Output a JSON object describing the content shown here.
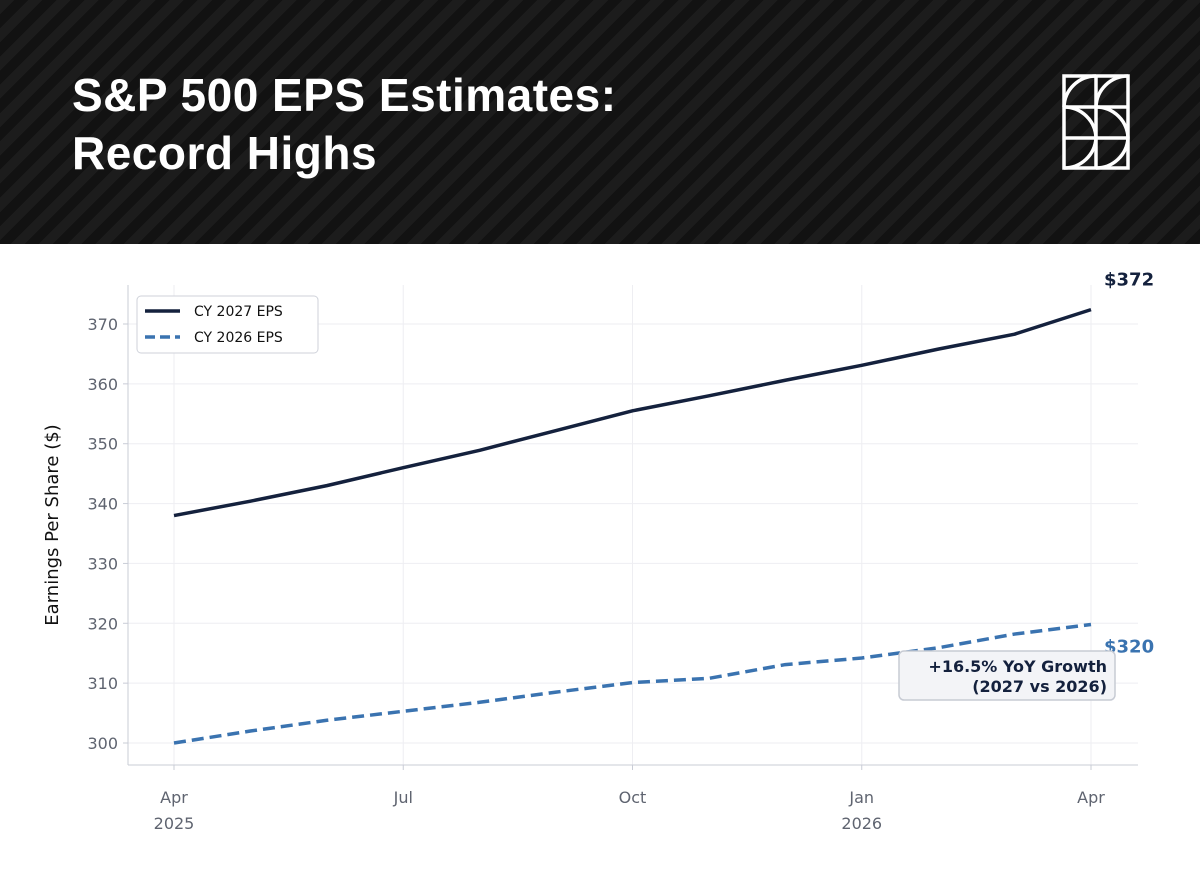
{
  "header": {
    "title_line1": "S&P 500 EPS Estimates:",
    "title_line2": "Record Highs"
  },
  "chart_data": {
    "type": "line",
    "ylabel": "Earnings Per Share ($)",
    "xlabel": "",
    "ylim": [
      296.5,
      376.5
    ],
    "yticks": [
      300,
      310,
      320,
      330,
      340,
      350,
      360,
      370
    ],
    "xticks": [
      {
        "m": 0,
        "l1": "Apr",
        "l2": "2025"
      },
      {
        "m": 3,
        "l1": "Jul",
        "l2": ""
      },
      {
        "m": 6,
        "l1": "Oct",
        "l2": ""
      },
      {
        "m": 9,
        "l1": "Jan",
        "l2": "2026"
      },
      {
        "m": 12,
        "l1": "Apr",
        "l2": ""
      }
    ],
    "x_months": [
      0,
      1,
      2,
      3,
      4,
      5,
      6,
      7,
      8,
      9,
      10,
      11,
      12
    ],
    "series": [
      {
        "name": "CY 2027 EPS",
        "style": "solid",
        "color": "#14213d",
        "values": [
          338,
          340.4,
          343,
          346,
          348.9,
          352.2,
          355.5,
          358,
          360.6,
          363.1,
          365.8,
          368.3,
          372.4
        ],
        "end_label": "$372"
      },
      {
        "name": "CY 2026 EPS",
        "style": "dashed",
        "color": "#3a73b0",
        "values": [
          300,
          302,
          303.8,
          305.3,
          306.8,
          308.5,
          310.1,
          310.8,
          313.1,
          314.2,
          315.9,
          318.2,
          319.8
        ],
        "end_label": "$320"
      }
    ],
    "legend_position": "top-left",
    "grid": true,
    "annotation": {
      "line1": "+16.5% YoY Growth",
      "line2": "(2027 vs 2026)"
    }
  }
}
